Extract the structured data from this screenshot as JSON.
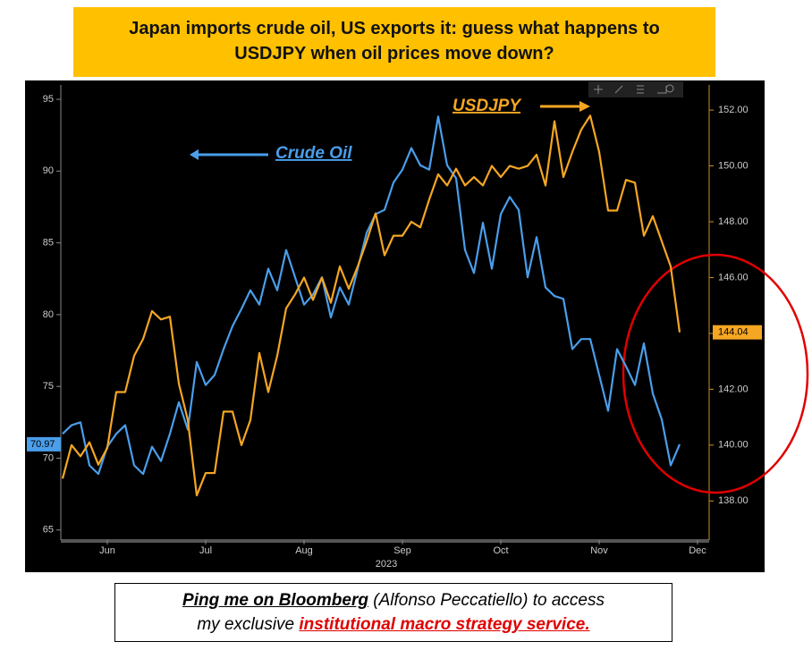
{
  "chart_data": {
    "type": "line",
    "title": "Japan imports crude oil, US exports it: guess what happens to USDJPY when oil prices move down?",
    "year_label": "2023",
    "annotations": [
      "Crude Oil",
      "USDJPY"
    ],
    "categories": [
      null,
      null,
      null,
      null,
      null,
      "Jun",
      null,
      null,
      null,
      null,
      null,
      null,
      null,
      null,
      null,
      null,
      "Jul",
      null,
      null,
      null,
      null,
      null,
      null,
      null,
      null,
      null,
      null,
      "Aug",
      null,
      null,
      null,
      null,
      null,
      null,
      null,
      null,
      null,
      null,
      "Sep",
      null,
      null,
      null,
      null,
      null,
      null,
      null,
      null,
      null,
      null,
      "Oct",
      null,
      null,
      null,
      null,
      null,
      null,
      null,
      null,
      null,
      null,
      "Nov",
      null,
      null,
      null,
      null,
      null,
      null,
      null,
      null,
      null,
      null,
      "Dec"
    ],
    "series": [
      {
        "name": "Crude Oil",
        "color": "#4a9eea",
        "axis": "y",
        "values": [
          71.7,
          72.3,
          72.5,
          69.5,
          68.9,
          70.8,
          71.7,
          72.3,
          69.5,
          68.9,
          70.8,
          69.8,
          71.7,
          73.9,
          72.0,
          76.7,
          75.1,
          75.8,
          77.6,
          79.2,
          80.4,
          81.7,
          80.7,
          83.2,
          81.7,
          84.5,
          82.6,
          80.7,
          81.4,
          82.6,
          79.8,
          81.9,
          80.7,
          83.2,
          85.7,
          87.0,
          87.3,
          89.2,
          90.1,
          91.6,
          90.4,
          90.1,
          93.8,
          90.4,
          89.5,
          84.5,
          82.9,
          86.4,
          83.2,
          87.0,
          88.2,
          87.3,
          82.6,
          85.4,
          81.9,
          81.3,
          81.1,
          77.6,
          78.3,
          78.3,
          75.8,
          73.3,
          77.6,
          76.4,
          75.1,
          78.0,
          74.5,
          72.7,
          69.5,
          70.97,
          null,
          null
        ]
      },
      {
        "name": "USDJPY",
        "color": "#f5a623",
        "axis": "y2",
        "values": [
          138.8,
          140.0,
          139.6,
          140.1,
          139.3,
          139.9,
          141.9,
          141.9,
          143.2,
          143.8,
          144.8,
          144.5,
          144.6,
          142.2,
          140.9,
          138.2,
          139.0,
          139.0,
          141.2,
          141.2,
          140.0,
          140.9,
          143.3,
          141.9,
          143.2,
          144.9,
          145.4,
          146.0,
          145.2,
          146.0,
          145.1,
          146.4,
          145.6,
          146.4,
          147.3,
          148.3,
          146.8,
          147.5,
          147.5,
          148.0,
          147.8,
          148.8,
          149.7,
          149.3,
          149.9,
          149.3,
          149.6,
          149.3,
          150.0,
          149.6,
          150.0,
          149.9,
          150.0,
          150.4,
          149.3,
          151.6,
          149.6,
          150.5,
          151.3,
          151.8,
          150.5,
          148.4,
          148.4,
          149.5,
          149.4,
          147.5,
          148.2,
          147.3,
          146.4,
          144.04,
          null,
          null
        ]
      }
    ],
    "ylim": [
      64.3,
      96
    ],
    "yticks": [
      65,
      70,
      75,
      80,
      85,
      90,
      95
    ],
    "y2lim": [
      136.6,
      152.9
    ],
    "y2ticks": [
      {
        "value": 138,
        "label": "138.00"
      },
      {
        "value": 140,
        "label": "140.00"
      },
      {
        "value": 142,
        "label": "142.00"
      },
      {
        "value": 144,
        "label": "144.00"
      },
      {
        "value": 146,
        "label": "146.00"
      },
      {
        "value": 148,
        "label": "148.00"
      },
      {
        "value": 150,
        "label": "150.00"
      },
      {
        "value": 152,
        "label": "152.00"
      }
    ],
    "grid": false
  },
  "footer": {
    "link": "Ping me on Bloomberg",
    "text1": " (Alfonso Peccatiello) to access",
    "text2": "my exclusive ",
    "highlight": "institutional macro strategy service."
  }
}
